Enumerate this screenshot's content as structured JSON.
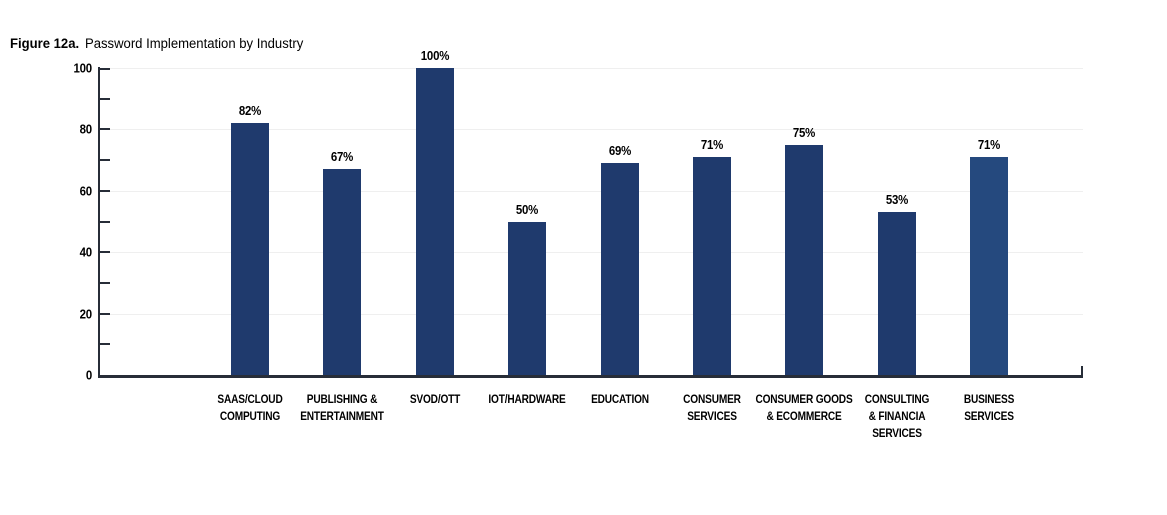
{
  "figure": {
    "label": "Figure 12a.",
    "title": "Password Implementation by Industry"
  },
  "chart_data": {
    "type": "bar",
    "title": "Password Implementation by Industry",
    "categories": [
      "SAAS/CLOUD\nCOMPUTING",
      "PUBLISHING &\nENTERTAINMENT",
      "SVOD/OTT",
      "IOT/HARDWARE",
      "EDUCATION",
      "CONSUMER\nSERVICES",
      "CONSUMER GOODS\n& ECOMMERCE",
      "CONSULTING\n& FINANCIA\nSERVICES",
      "BUSINESS\nSERVICES"
    ],
    "values": [
      82,
      67,
      100,
      50,
      69,
      71,
      75,
      53,
      71
    ],
    "value_labels": [
      "82%",
      "67%",
      "100%",
      "50%",
      "69%",
      "71%",
      "75%",
      "53%",
      "71%"
    ],
    "xlabel": "",
    "ylabel": "",
    "ylim": [
      0,
      100
    ],
    "ytick_labels": [
      0,
      20,
      40,
      60,
      80,
      100
    ],
    "minor_ticks": [
      10,
      20,
      30,
      40,
      50,
      60,
      70,
      80,
      90,
      100
    ],
    "grid_values": [
      20,
      40,
      60,
      80,
      100
    ],
    "grid": true,
    "legend_position": "none",
    "bar_colors": [
      "#1f3a6d",
      "#1f3a6d",
      "#1f3a6d",
      "#1f3a6d",
      "#1f3a6d",
      "#1f3a6d",
      "#1f3a6d",
      "#1f3a6d",
      "#25497e"
    ],
    "axis_color": "#272d38",
    "gridline_color": "#efefef",
    "label_color": "#000000"
  }
}
